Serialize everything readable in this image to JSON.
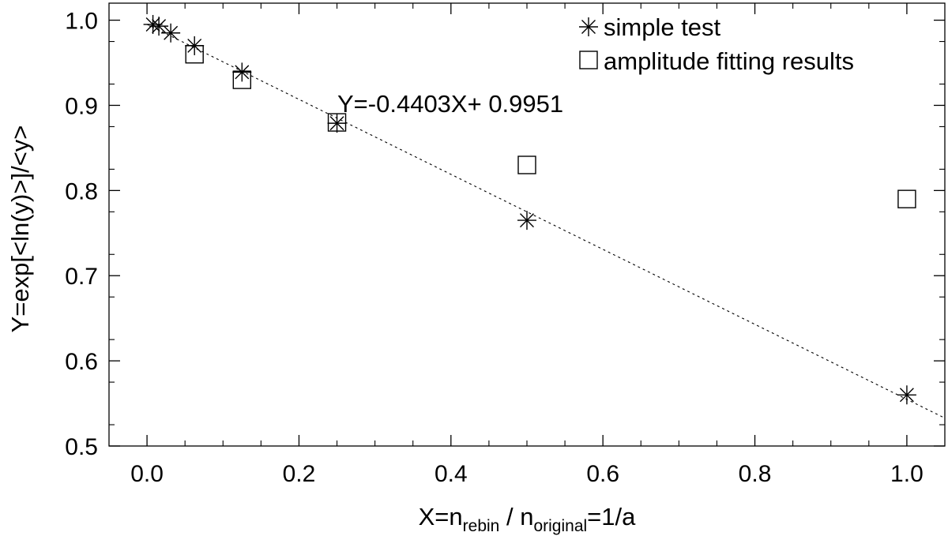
{
  "chart_data": {
    "type": "scatter",
    "title": "",
    "xlabel": {
      "prefix": "X=n",
      "sub1": "rebin",
      "middle": " / n",
      "sub2": "original",
      "suffix": "=1/a"
    },
    "ylabel": "Y=exp[<ln(y)>]/<y>",
    "xlim": [
      -0.05,
      1.05
    ],
    "ylim": [
      0.5,
      1.02
    ],
    "xticks": [
      0.0,
      0.2,
      0.4,
      0.6,
      0.8,
      1.0
    ],
    "xtick_labels": [
      "0.0",
      "0.2",
      "0.4",
      "0.6",
      "0.8",
      "1.0"
    ],
    "yticks": [
      0.5,
      0.6,
      0.7,
      0.8,
      0.9,
      1.0
    ],
    "ytick_labels": [
      "0.5",
      "0.6",
      "0.7",
      "0.8",
      "0.9",
      "1.0"
    ],
    "series": [
      {
        "name": "simple test",
        "marker": "asterisk",
        "points": [
          [
            0.0078,
            0.995
          ],
          [
            0.0156,
            0.993
          ],
          [
            0.03125,
            0.985
          ],
          [
            0.0625,
            0.97
          ],
          [
            0.125,
            0.939
          ],
          [
            0.25,
            0.879
          ],
          [
            0.5,
            0.765
          ],
          [
            1.0,
            0.56
          ]
        ]
      },
      {
        "name": "amplitude fitting results",
        "marker": "square",
        "points": [
          [
            0.0625,
            0.96
          ],
          [
            0.125,
            0.93
          ],
          [
            0.25,
            0.88
          ],
          [
            0.5,
            0.83
          ],
          [
            1.0,
            0.79
          ]
        ]
      }
    ],
    "fit_line": {
      "slope": -0.4403,
      "intercept": 0.9951,
      "x_range": [
        0.0,
        1.05
      ],
      "style": "dotted"
    },
    "annotation": "Y=-0.4403X+ 0.9951",
    "legend_position": "top-right",
    "grid": false
  }
}
